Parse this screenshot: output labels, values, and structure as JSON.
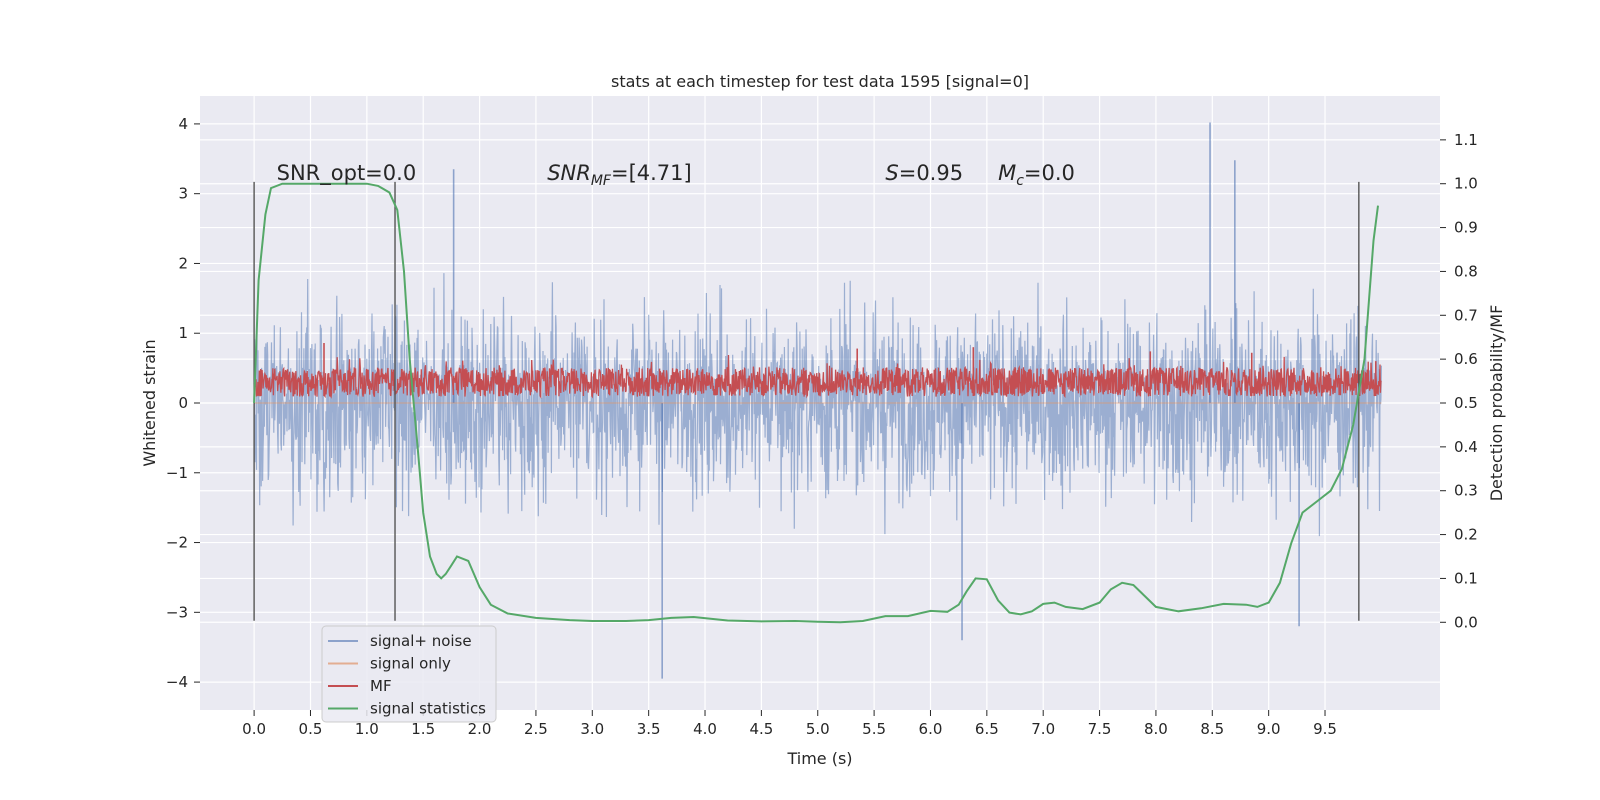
{
  "chart_data": {
    "type": "line",
    "title": "stats at each timestep for test data 1595 [signal=0]",
    "xlabel": "Time (s)",
    "ylabel_left": "Whitened strain",
    "ylabel_right": "Detection probability/MF",
    "xlim": [
      -0.48,
      10.52
    ],
    "ylim_left": [
      -4.4,
      4.4
    ],
    "ylim_right": [
      -0.2,
      1.2
    ],
    "x_ticks": [
      "0.0",
      "0.5",
      "1.0",
      "1.5",
      "2.0",
      "2.5",
      "3.0",
      "3.5",
      "4.0",
      "4.5",
      "5.0",
      "5.5",
      "6.0",
      "6.5",
      "7.0",
      "7.5",
      "8.0",
      "8.5",
      "9.0",
      "9.5"
    ],
    "y_ticks_left": [
      "4",
      "3",
      "2",
      "1",
      "0",
      "−1",
      "−2",
      "−3",
      "−4"
    ],
    "y_ticks_right": [
      "1.1",
      "1.0",
      "0.9",
      "0.8",
      "0.7",
      "0.6",
      "0.5",
      "0.4",
      "0.3",
      "0.2",
      "0.1",
      "0.0"
    ],
    "grid": true,
    "legend_position": "lower-left",
    "annotations": [
      {
        "base": "SNR_opt=0.0",
        "sub": "",
        "tail": "",
        "italic": false,
        "x": 0.2
      },
      {
        "base": "SNR",
        "sub": "MF",
        "tail": "=[4.71]",
        "italic": true,
        "x": 2.6
      },
      {
        "base": "S",
        "sub": "",
        "tail": "=0.95",
        "italic": true,
        "x": 5.6
      },
      {
        "base": "M",
        "sub": "c",
        "tail": "=0.0",
        "italic": true,
        "x": 6.6
      }
    ],
    "vlines": [
      0.0,
      1.25,
      9.8
    ],
    "series": [
      {
        "name": "signal+ noise",
        "color": "#4c72b0",
        "x_range": [
          0.0,
          10.0
        ],
        "range": [
          -3.9,
          4.0
        ],
        "peaks": [
          [
            1.77,
            3.35
          ],
          [
            3.62,
            -3.95
          ],
          [
            6.28,
            -3.4
          ],
          [
            8.48,
            4.02
          ],
          [
            8.7,
            3.48
          ],
          [
            9.27,
            -3.2
          ]
        ]
      },
      {
        "name": "signal only",
        "color": "#dd8452",
        "x_range": [
          0.0,
          10.0
        ],
        "values": "flat-zero"
      },
      {
        "name": "MF",
        "color": "#c44e52",
        "x_range": [
          0.0,
          10.0
        ],
        "range": [
          0.0,
          0.88
        ],
        "peaks": [
          [
            0.62,
            0.86
          ],
          [
            5.35,
            0.78
          ],
          [
            6.38,
            0.8
          ],
          [
            7.95,
            0.74
          ],
          [
            8.85,
            0.72
          ],
          [
            9.95,
            0.6
          ]
        ]
      },
      {
        "name": "signal statistics",
        "color": "#55a868",
        "axis": "right",
        "x": [
          0.0,
          0.04,
          0.1,
          0.15,
          0.25,
          0.4,
          0.6,
          0.8,
          1.0,
          1.1,
          1.2,
          1.27,
          1.33,
          1.38,
          1.45,
          1.5,
          1.56,
          1.62,
          1.66,
          1.7,
          1.75,
          1.8,
          1.9,
          2.0,
          2.1,
          2.25,
          2.5,
          2.8,
          3.0,
          3.3,
          3.5,
          3.7,
          3.9,
          4.2,
          4.5,
          4.8,
          5.0,
          5.2,
          5.4,
          5.6,
          5.8,
          6.0,
          6.15,
          6.25,
          6.32,
          6.4,
          6.5,
          6.6,
          6.7,
          6.8,
          6.9,
          7.0,
          7.1,
          7.2,
          7.35,
          7.5,
          7.6,
          7.7,
          7.8,
          7.9,
          8.0,
          8.2,
          8.4,
          8.6,
          8.8,
          8.9,
          9.0,
          9.1,
          9.2,
          9.3,
          9.45,
          9.55,
          9.65,
          9.75,
          9.85,
          9.93,
          9.97
        ],
        "y": [
          0.5,
          0.78,
          0.93,
          0.99,
          1.0,
          1.0,
          1.0,
          1.0,
          1.0,
          0.995,
          0.98,
          0.94,
          0.8,
          0.6,
          0.4,
          0.25,
          0.15,
          0.11,
          0.1,
          0.11,
          0.13,
          0.15,
          0.14,
          0.08,
          0.04,
          0.02,
          0.01,
          0.005,
          0.003,
          0.003,
          0.005,
          0.01,
          0.012,
          0.004,
          0.002,
          0.003,
          0.001,
          0.0,
          0.003,
          0.014,
          0.014,
          0.026,
          0.024,
          0.04,
          0.07,
          0.1,
          0.098,
          0.05,
          0.022,
          0.018,
          0.025,
          0.042,
          0.045,
          0.035,
          0.03,
          0.045,
          0.075,
          0.09,
          0.085,
          0.06,
          0.035,
          0.025,
          0.032,
          0.042,
          0.04,
          0.035,
          0.045,
          0.09,
          0.18,
          0.25,
          0.28,
          0.3,
          0.35,
          0.45,
          0.6,
          0.87,
          0.95
        ]
      }
    ]
  }
}
